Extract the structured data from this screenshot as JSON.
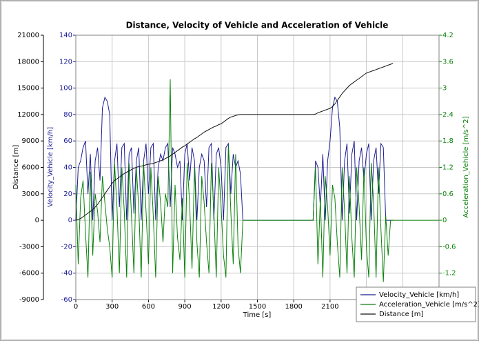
{
  "chart_data": {
    "type": "line",
    "title": "Distance, Velocity of Vehicle and Acceleration of Vehicle",
    "x_label": "Time [s]",
    "y_label": "Velocity_Vehicle [km/h]",
    "y2_label": "Acceleration_Vehicle [m/s^2]",
    "y3_label": "Distance [m]",
    "xlim": [
      0,
      3000
    ],
    "xticks": [
      0,
      300,
      600,
      900,
      1200,
      1500,
      1800,
      2100,
      2400,
      2700
    ],
    "ylim": [
      -60,
      140
    ],
    "yticks": [
      -60,
      -40,
      -20,
      0,
      20,
      40,
      60,
      80,
      100,
      120,
      140
    ],
    "y2lim": [
      -1.8,
      4.2
    ],
    "y2ticks": [
      -1.2,
      -0.6,
      0,
      0.6,
      1.2,
      1.8,
      2.4,
      3,
      3.6,
      4.2
    ],
    "y3lim": [
      -9000,
      21000
    ],
    "y3ticks": [
      -9000,
      -6000,
      -3000,
      0,
      3000,
      6000,
      9000,
      12000,
      15000,
      18000,
      21000
    ],
    "grid": true,
    "legend": "lower right",
    "x": [
      0,
      20,
      40,
      60,
      80,
      100,
      120,
      140,
      160,
      180,
      200,
      220,
      240,
      260,
      280,
      300,
      320,
      340,
      360,
      380,
      400,
      420,
      440,
      460,
      480,
      500,
      520,
      540,
      560,
      580,
      600,
      620,
      640,
      660,
      680,
      700,
      720,
      740,
      760,
      780,
      800,
      820,
      840,
      860,
      880,
      900,
      920,
      940,
      960,
      980,
      1000,
      1020,
      1040,
      1060,
      1080,
      1100,
      1120,
      1140,
      1160,
      1180,
      1200,
      1220,
      1240,
      1260,
      1280,
      1300,
      1320,
      1340,
      1360,
      1380,
      1500,
      1700,
      1900,
      1960,
      1980,
      2000,
      2020,
      2040,
      2060,
      2080,
      2100,
      2120,
      2140,
      2160,
      2180,
      2200,
      2220,
      2240,
      2260,
      2280,
      2300,
      2320,
      2340,
      2360,
      2380,
      2400,
      2420,
      2440,
      2460,
      2480,
      2500,
      2520,
      2540,
      2560,
      2580,
      2600,
      2620,
      2700,
      2800,
      2900,
      3000
    ],
    "series": [
      {
        "name": "Velocity_Vehicle [km/h]",
        "color": "#1c1c94",
        "axis": "y",
        "values": [
          0,
          40,
          45,
          55,
          60,
          20,
          50,
          0,
          45,
          55,
          30,
          85,
          93,
          90,
          80,
          0,
          45,
          58,
          10,
          55,
          58,
          0,
          50,
          55,
          5,
          45,
          55,
          0,
          45,
          58,
          20,
          55,
          58,
          0,
          40,
          50,
          45,
          55,
          58,
          10,
          55,
          50,
          40,
          45,
          0,
          50,
          58,
          30,
          55,
          45,
          0,
          40,
          50,
          45,
          10,
          55,
          58,
          0,
          50,
          55,
          40,
          0,
          55,
          58,
          20,
          50,
          40,
          45,
          35,
          0,
          0,
          0,
          0,
          0,
          45,
          40,
          10,
          50,
          0,
          45,
          60,
          85,
          93,
          90,
          70,
          0,
          45,
          58,
          5,
          50,
          60,
          0,
          45,
          55,
          30,
          50,
          58,
          0,
          45,
          55,
          20,
          58,
          55,
          0,
          0,
          0,
          0,
          null,
          null,
          null,
          null
        ]
      },
      {
        "name": "Acceleration_Vehicle [m/s^2]",
        "color": "#0a820a",
        "axis": "y2",
        "values": [
          0.8,
          -1.0,
          0.5,
          0.9,
          -0.3,
          -1.3,
          1.1,
          -0.8,
          0.6,
          0.2,
          -0.5,
          1.0,
          0.4,
          -0.2,
          -0.6,
          -1.3,
          1.3,
          0.3,
          -1.2,
          1.2,
          0.2,
          -1.3,
          1.3,
          0.1,
          -1.2,
          1.2,
          0.3,
          -1.3,
          1.3,
          0.2,
          -1.0,
          1.2,
          0.1,
          -1.3,
          1.0,
          0.4,
          -0.5,
          0.6,
          0.3,
          3.2,
          -1.2,
          0.8,
          -0.4,
          -0.9,
          0.5,
          -1.3,
          1.3,
          0.4,
          -1.1,
          1.2,
          -0.5,
          -1.3,
          1.0,
          0.4,
          -0.5,
          -1.2,
          1.3,
          0.2,
          -1.3,
          1.2,
          0.3,
          -0.8,
          -1.3,
          1.7,
          0.2,
          -1.0,
          1.5,
          -0.6,
          -1.2,
          0,
          0,
          0,
          0,
          0,
          1.2,
          -1.0,
          0.5,
          -1.3,
          1.0,
          0.3,
          -0.8,
          0.8,
          0.5,
          -0.5,
          -1.3,
          1.2,
          0.2,
          -1.2,
          1.0,
          -0.4,
          -1.3,
          1.2,
          0.3,
          -0.9,
          1.2,
          -0.6,
          -1.3,
          1.3,
          0.4,
          -1.3,
          1.2,
          -0.2,
          -1.4,
          0.1,
          -0.8,
          0,
          0,
          0,
          0,
          0,
          0
        ]
      },
      {
        "name": "Distance [m]",
        "color": "#111111",
        "axis": "y3",
        "values": [
          0,
          100,
          200,
          400,
          600,
          800,
          1000,
          1200,
          1500,
          1800,
          2200,
          2600,
          3000,
          3400,
          3800,
          4200,
          4500,
          4700,
          4900,
          5100,
          5300,
          5450,
          5600,
          5750,
          5900,
          6000,
          6100,
          6150,
          6200,
          6300,
          6350,
          6400,
          6450,
          6550,
          6650,
          6750,
          6850,
          7000,
          7150,
          7300,
          7500,
          7700,
          7900,
          8100,
          8300,
          8450,
          8650,
          8850,
          9050,
          9250,
          9400,
          9600,
          9800,
          10000,
          10150,
          10300,
          10450,
          10600,
          10700,
          10850,
          10950,
          11150,
          11350,
          11550,
          11700,
          11800,
          11900,
          11950,
          12000,
          12000,
          12000,
          12000,
          12000,
          12000,
          12050,
          12200,
          12300,
          12400,
          12500,
          12600,
          12700,
          12900,
          13200,
          13600,
          14000,
          14400,
          14700,
          15000,
          15300,
          15500,
          15700,
          15900,
          16100,
          16300,
          16500,
          16700,
          16800,
          16900,
          17000,
          17100,
          17200,
          17300,
          17400,
          17500,
          17600,
          17700,
          17800,
          null,
          null,
          null,
          null
        ]
      }
    ]
  }
}
